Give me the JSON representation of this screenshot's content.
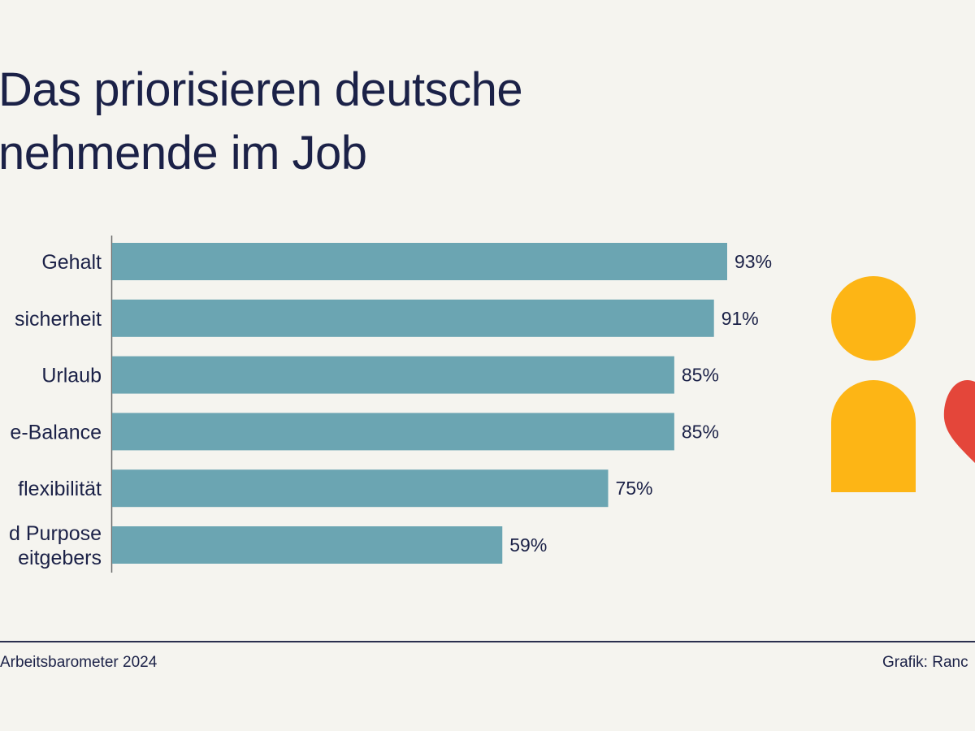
{
  "title": {
    "line1": "Das priorisieren deutsche",
    "line2": "nehmende im Job"
  },
  "chart_data": {
    "type": "bar",
    "orientation": "horizontal",
    "categories": [
      [
        "Gehalt"
      ],
      [
        "sicherheit"
      ],
      [
        "Urlaub"
      ],
      [
        "e-Balance"
      ],
      [
        "flexibilität"
      ],
      [
        "d Purpose",
        "eitgebers"
      ]
    ],
    "values": [
      93,
      91,
      85,
      85,
      75,
      59
    ],
    "value_labels": [
      "93%",
      "91%",
      "85%",
      "85%",
      "75%",
      "59%"
    ],
    "xlim": [
      0,
      100
    ],
    "grid": false,
    "bar_color": "#6ba5b2"
  },
  "footer": {
    "source": "Arbeitsbarometer 2024",
    "credit": "Grafik: Ranc"
  },
  "illustration": {
    "person_color": "#fdb515",
    "heart_color": "#e4463a",
    "icons": [
      "person-icon",
      "heart-icon"
    ]
  }
}
